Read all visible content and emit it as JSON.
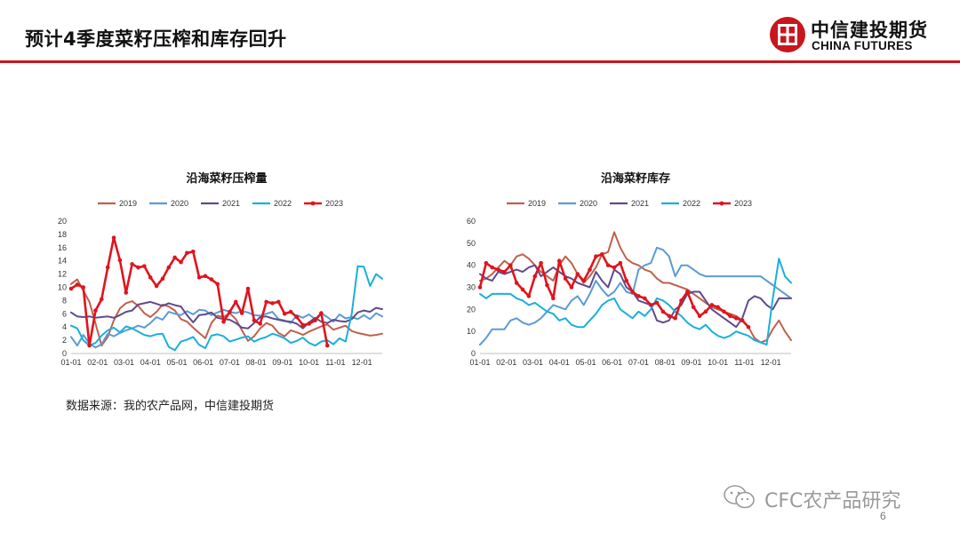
{
  "header": {
    "title": "预计4季度菜籽压榨和库存回升",
    "logo_cn": "中信建投期货",
    "logo_en": "CHINA FUTURES",
    "accent_color": "#c8161d"
  },
  "footer": {
    "source": "数据来源：我的农产品网，中信建投期货",
    "watermark": "CFC农产品研究",
    "page_number": "6"
  },
  "chart_data": [
    {
      "type": "line",
      "title": "沿海菜籽压榨量",
      "xlabel": "",
      "ylabel": "",
      "ylim": [
        0,
        20
      ],
      "yticks": [
        0,
        2,
        4,
        6,
        8,
        10,
        12,
        14,
        16,
        18,
        20
      ],
      "xticks": [
        "01-01",
        "02-01",
        "03-01",
        "04-01",
        "05-01",
        "06-01",
        "07-01",
        "08-01",
        "09-01",
        "10-01",
        "11-01",
        "12-01"
      ],
      "x_unit": "week",
      "xlim": [
        1,
        52
      ],
      "legend_position": "top",
      "grid": "none",
      "series": [
        {
          "name": "2019",
          "color": "#c0604d",
          "marker": false,
          "values": [
            10.5,
            11.2,
            9.5,
            7.8,
            4.5,
            1.2,
            2.5,
            5.0,
            6.8,
            7.6,
            7.9,
            7.2,
            6.1,
            5.5,
            6.3,
            7.4,
            7.1,
            6.5,
            5.2,
            4.8,
            3.9,
            3.1,
            2.3,
            4.6,
            5.7,
            5.5,
            6.1,
            5.2,
            3.5,
            1.9,
            2.6,
            3.8,
            4.6,
            4.2,
            3.1,
            2.6,
            3.5,
            3.2,
            2.8,
            3.3,
            3.7,
            4.1,
            4.4,
            3.6,
            3.9,
            4.2,
            3.4,
            3.1,
            2.9,
            2.7,
            2.8,
            3.0
          ]
        },
        {
          "name": "2020",
          "color": "#5b9bd5",
          "marker": false,
          "values": [
            2.5,
            1.2,
            2.8,
            1.5,
            0.9,
            1.4,
            3.0,
            2.6,
            3.1,
            3.5,
            3.8,
            4.2,
            3.9,
            4.6,
            5.5,
            5.1,
            6.3,
            6.0,
            5.8,
            6.4,
            5.9,
            6.6,
            6.5,
            5.8,
            6.2,
            6.6,
            6.3,
            6.1,
            6.4,
            6.2,
            5.8,
            5.7,
            6.0,
            6.3,
            5.2,
            5.0,
            4.6,
            5.8,
            5.4,
            5.9,
            5.2,
            6.1,
            5.5,
            4.8,
            5.9,
            5.3,
            5.5,
            5.2,
            5.8,
            5.2,
            6.1,
            5.6
          ]
        },
        {
          "name": "2021",
          "color": "#5f4b8b",
          "marker": false,
          "values": [
            6.2,
            5.6,
            5.5,
            5.6,
            5.4,
            5.5,
            5.6,
            5.4,
            5.8,
            6.3,
            6.5,
            7.4,
            7.6,
            7.8,
            7.5,
            7.2,
            7.6,
            7.3,
            7.1,
            5.8,
            4.7,
            5.8,
            5.9,
            6.2,
            5.4,
            5.2,
            5.1,
            4.6,
            3.9,
            3.8,
            4.6,
            5.5,
            5.6,
            5.3,
            5.1,
            4.9,
            4.8,
            4.5,
            3.8,
            4.7,
            5.4,
            4.8,
            4.6,
            5.1,
            4.9,
            4.8,
            5.2,
            6.2,
            6.5,
            6.3,
            6.9,
            6.7
          ]
        },
        {
          "name": "2022",
          "color": "#1ab0d8",
          "marker": false,
          "values": [
            4.2,
            3.8,
            2.0,
            1.2,
            1.6,
            2.7,
            3.5,
            3.9,
            3.2,
            4.1,
            3.8,
            3.3,
            2.8,
            2.6,
            2.9,
            3.0,
            1.0,
            0.5,
            1.8,
            2.1,
            2.5,
            1.3,
            0.8,
            2.7,
            2.9,
            2.6,
            1.8,
            2.1,
            2.4,
            2.6,
            1.8,
            2.2,
            2.5,
            3.0,
            2.7,
            2.3,
            1.6,
            1.9,
            2.4,
            1.6,
            1.2,
            1.8,
            2.0,
            1.4,
            2.3,
            1.8,
            6.0,
            13.2,
            13.1,
            10.2,
            12.0,
            11.3
          ]
        },
        {
          "name": "2023",
          "color": "#e0141e",
          "marker": true,
          "values": [
            9.8,
            10.4,
            10.0,
            1.2,
            6.5,
            8.2,
            13.0,
            17.5,
            14.1,
            9.2,
            13.5,
            13.0,
            13.2,
            11.5,
            10.2,
            11.3,
            13.0,
            14.5,
            13.8,
            15.2,
            15.4,
            11.5,
            11.7,
            11.2,
            10.5,
            4.8,
            6.3,
            7.8,
            6.1,
            9.8,
            5.0,
            4.5,
            7.8,
            7.6,
            7.8,
            6.0,
            6.3,
            5.5,
            4.3,
            4.5,
            5.0,
            6.1,
            1.2,
            null,
            null,
            null,
            null,
            null,
            null,
            null,
            null,
            null
          ]
        }
      ]
    },
    {
      "type": "line",
      "title": "沿海菜籽库存",
      "xlabel": "",
      "ylabel": "",
      "ylim": [
        0,
        60
      ],
      "yticks": [
        0,
        10,
        20,
        30,
        40,
        50,
        60
      ],
      "xticks": [
        "01-01",
        "02-01",
        "03-01",
        "04-01",
        "05-01",
        "06-01",
        "07-01",
        "08-01",
        "09-01",
        "10-01",
        "11-01",
        "12-01"
      ],
      "x_unit": "week",
      "xlim": [
        1,
        52
      ],
      "legend_position": "top",
      "grid": "none",
      "series": [
        {
          "name": "2019",
          "color": "#c0604d",
          "marker": false,
          "values": [
            33,
            34,
            36,
            39,
            42,
            40,
            44,
            45,
            43,
            40,
            37,
            35,
            33,
            40,
            44,
            41,
            36,
            32,
            35,
            39,
            45,
            46,
            55,
            48,
            43,
            41,
            40,
            38,
            37,
            34,
            32,
            32,
            31,
            30,
            29,
            27,
            25,
            23,
            21,
            20,
            19,
            18,
            17,
            15,
            12,
            7,
            5,
            6,
            11,
            15,
            10,
            6
          ]
        },
        {
          "name": "2020",
          "color": "#5b9bd5",
          "marker": false,
          "values": [
            4,
            7,
            11,
            11,
            11,
            15,
            16,
            14,
            13,
            14,
            16,
            19,
            22,
            21,
            20,
            24,
            26,
            22,
            27,
            33,
            29,
            26,
            28,
            32,
            28,
            27,
            38,
            40,
            41,
            48,
            47,
            44,
            35,
            40,
            40,
            38,
            36,
            35,
            35,
            35,
            35,
            35,
            35,
            35,
            35,
            35,
            35,
            33,
            31,
            29,
            27,
            25
          ]
        },
        {
          "name": "2021",
          "color": "#5f4b8b",
          "marker": false,
          "values": [
            36,
            34,
            33,
            37,
            36,
            37,
            38,
            37,
            39,
            40,
            35,
            37,
            39,
            37,
            35,
            34,
            32,
            31,
            30,
            37,
            33,
            30,
            38,
            36,
            30,
            28,
            24,
            23,
            22,
            15,
            14,
            15,
            20,
            22,
            27,
            28,
            28,
            24,
            20,
            18,
            16,
            14,
            12,
            16,
            24,
            26,
            25,
            22,
            20,
            25,
            25,
            25
          ]
        },
        {
          "name": "2022",
          "color": "#1ab0d8",
          "marker": false,
          "values": [
            27,
            25,
            27,
            27,
            27,
            27,
            25,
            24,
            22,
            23,
            21,
            19,
            18,
            15,
            16,
            13,
            12,
            12,
            15,
            18,
            22,
            24,
            25,
            20,
            18,
            16,
            19,
            17,
            20,
            25,
            24,
            22,
            19,
            17,
            14,
            12,
            11,
            13,
            10,
            8,
            7,
            8,
            10,
            9,
            8,
            6,
            5,
            4,
            25,
            43,
            35,
            32
          ]
        },
        {
          "name": "2023",
          "color": "#e0141e",
          "marker": true,
          "values": [
            30,
            41,
            39,
            38,
            37,
            40,
            32,
            29,
            26,
            35,
            41,
            31,
            25,
            42,
            34,
            30,
            36,
            33,
            38,
            44,
            45,
            40,
            39,
            41,
            33,
            28,
            26,
            25,
            22,
            23,
            19,
            17,
            16,
            24,
            28,
            21,
            17,
            19,
            22,
            21,
            19,
            17,
            16,
            15,
            12,
            null,
            null,
            null,
            null,
            null,
            null,
            null
          ]
        }
      ]
    }
  ]
}
